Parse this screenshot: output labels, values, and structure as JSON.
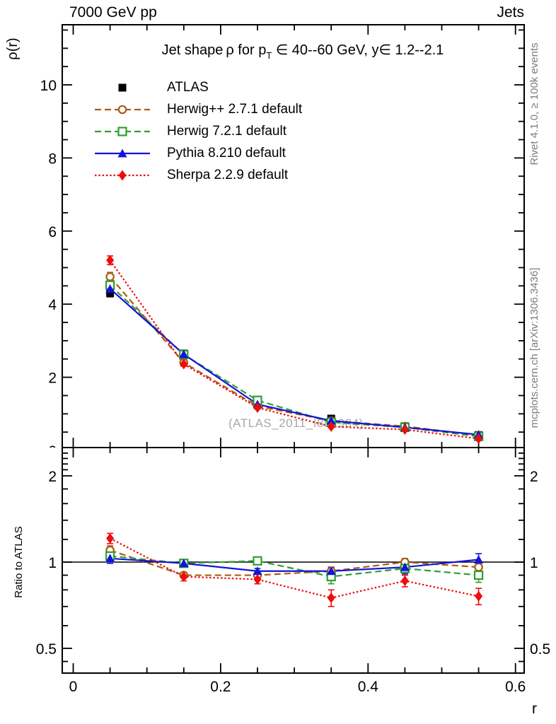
{
  "header": {
    "left": "7000 GeV pp",
    "right": "Jets"
  },
  "title": {
    "prefix": "Jet shape ρ for p",
    "sub": "T",
    "suffix": " ∈ 40--60 GeV, y∈ 1.2--2.1"
  },
  "watermark": "(ATLAS_2011_I882984)",
  "side_notes": {
    "top": "Rivet 4.1.0, ≥ 100k events",
    "bottom": "mcplots.cern.ch [arXiv:1306.3436]"
  },
  "chart_data": {
    "type": "line",
    "title_plain": "Jet shape ρ for pT ∈ 40--60 GeV, y ∈ 1.2--2.1",
    "x": [
      0.05,
      0.15,
      0.25,
      0.35,
      0.45,
      0.55
    ],
    "xaxis": {
      "label": "r",
      "tick_values": [
        0,
        0.2,
        0.4,
        0.6
      ],
      "ticks": [
        "0",
        "0.2",
        "0.4",
        "0.6"
      ],
      "minor_step": 0.05,
      "range": [
        -0.015,
        0.614
      ]
    },
    "yaxis_main": {
      "label": "ρ(r)",
      "tick_values": [
        0,
        2,
        4,
        6,
        8,
        10
      ],
      "ticks": [
        "0",
        "2",
        "4",
        "6",
        "8",
        "10"
      ],
      "minor_step": 0.5,
      "range": [
        0,
        11.6
      ]
    },
    "yaxis_ratio": {
      "label": "Ratio to ATLAS",
      "scale": "log",
      "tick_values": [
        0.5,
        1,
        2
      ],
      "ticks": [
        "0.5",
        "1",
        "2"
      ],
      "minor_values": [
        0.45,
        0.6,
        0.7,
        0.8,
        0.9,
        1.2,
        1.4,
        1.6,
        1.8,
        2.1,
        2.2,
        2.3,
        2.4,
        2.5
      ],
      "range": [
        0.41,
        2.51
      ]
    },
    "legend_position": "top-left",
    "grid": false,
    "series": [
      {
        "label": "ATLAS",
        "marker": "square-filled",
        "color": "#000000",
        "line": "none",
        "values": [
          4.3,
          2.65,
          1.35,
          0.87,
          0.66,
          0.42
        ],
        "err": [
          0.1,
          0.05,
          0.04,
          0.03,
          0.03,
          0.02
        ]
      },
      {
        "label": "Herwig++ 2.7.1 default",
        "marker": "circle-open",
        "color": "#ad5b10",
        "line": "dashed",
        "values": [
          4.75,
          2.4,
          1.21,
          0.81,
          0.66,
          0.41
        ],
        "err": [
          0.12,
          0.05,
          0.04,
          0.03,
          0.03,
          0.02
        ],
        "ratio": [
          1.1,
          0.9,
          0.9,
          0.93,
          1.0,
          0.96
        ],
        "ratio_err": [
          0.04,
          0.02,
          0.02,
          0.03,
          0.03,
          0.03
        ]
      },
      {
        "label": "Herwig 7.2.1 default",
        "marker": "square-open",
        "color": "#2f9e2f",
        "line": "dashed",
        "values": [
          4.52,
          2.62,
          1.37,
          0.77,
          0.63,
          0.38
        ],
        "err": [
          0.15,
          0.08,
          0.05,
          0.05,
          0.04,
          0.03
        ],
        "ratio": [
          1.05,
          0.99,
          1.01,
          0.89,
          0.95,
          0.9
        ],
        "ratio_err": [
          0.05,
          0.03,
          0.03,
          0.05,
          0.04,
          0.05
        ]
      },
      {
        "label": "Pythia 8.210 default",
        "marker": "triangle-filled",
        "color": "#1313dc",
        "line": "solid",
        "values": [
          4.42,
          2.63,
          1.26,
          0.81,
          0.63,
          0.43
        ],
        "err": [
          0.15,
          0.07,
          0.04,
          0.04,
          0.04,
          0.03
        ],
        "ratio": [
          1.03,
          0.99,
          0.93,
          0.93,
          0.96,
          1.02
        ],
        "ratio_err": [
          0.04,
          0.03,
          0.02,
          0.03,
          0.05,
          0.05
        ]
      },
      {
        "label": "Sherpa 2.2.9 default",
        "marker": "diamond-filled",
        "color": "#ef0c0c",
        "line": "dotted",
        "values": [
          5.2,
          2.36,
          1.17,
          0.65,
          0.57,
          0.32
        ],
        "err": [
          0.12,
          0.06,
          0.04,
          0.03,
          0.03,
          0.02
        ],
        "ratio": [
          1.21,
          0.89,
          0.87,
          0.75,
          0.86,
          0.76
        ],
        "ratio_err": [
          0.05,
          0.03,
          0.03,
          0.05,
          0.04,
          0.05
        ]
      }
    ],
    "ratio_reference_line": 1
  }
}
